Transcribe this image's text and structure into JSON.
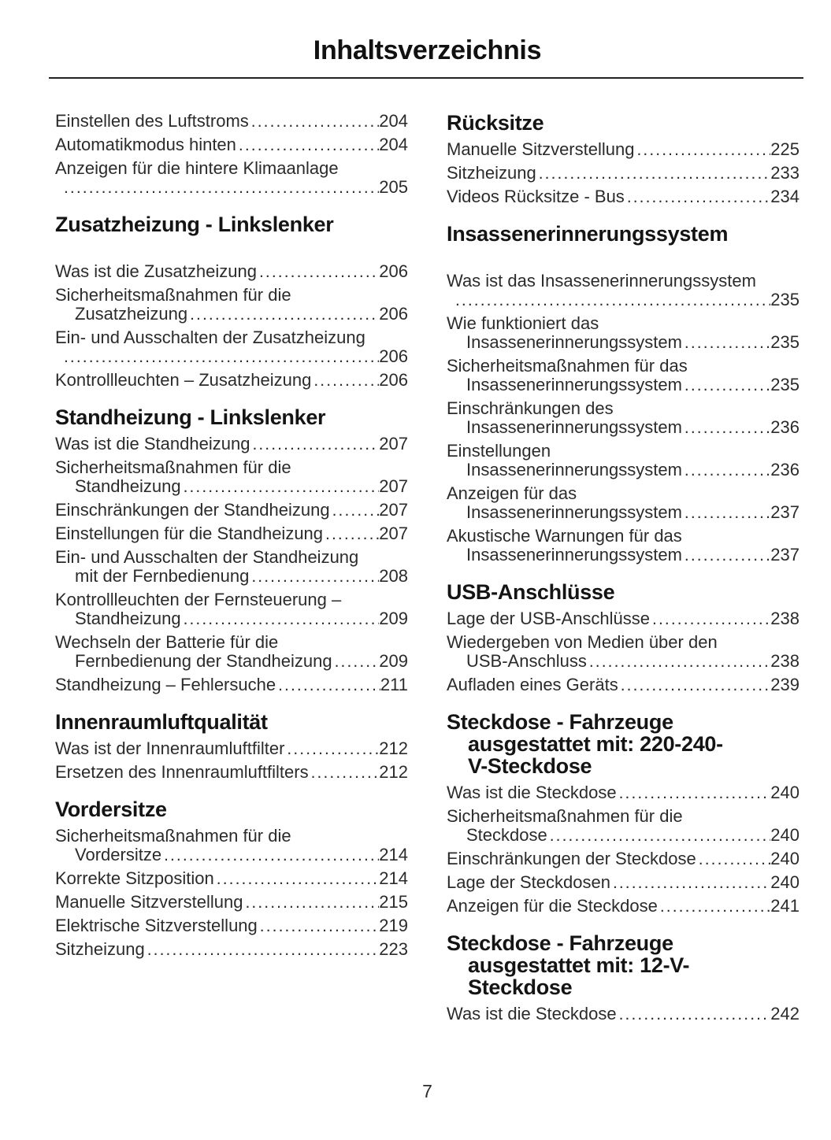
{
  "header": {
    "title": "Inhaltsverzeichnis"
  },
  "footer": {
    "page_number": "7"
  },
  "colors": {
    "background": "#ffffff",
    "text": "#2b2b2b",
    "heading": "#141414",
    "rule": "#222222"
  },
  "toc": {
    "left": [
      {
        "entries": [
          {
            "text": "Einstellen des Luftstroms",
            "page": "204"
          },
          {
            "text": "Automatikmodus hinten",
            "page": "204"
          },
          {
            "text": "Anzeigen für die hintere Klimaanlage",
            "cont": "",
            "page": "205"
          }
        ]
      },
      {
        "heading": [
          "Zusatzheizung - Linkslenker"
        ],
        "gap_after_heading": true,
        "entries": [
          {
            "text": "Was ist die Zusatzheizung",
            "page": "206"
          },
          {
            "text": "Sicherheitsmaßnahmen für die",
            "cont": "Zusatzheizung",
            "page": "206"
          },
          {
            "text": "Ein- und Ausschalten der Zusatzheizung",
            "cont": "",
            "page": "206"
          },
          {
            "text": "Kontrollleuchten – Zusatzheizung",
            "page": "206"
          }
        ]
      },
      {
        "heading": [
          "Standheizung - Linkslenker"
        ],
        "entries": [
          {
            "text": "Was ist die Standheizung",
            "page": "207"
          },
          {
            "text": "Sicherheitsmaßnahmen für die",
            "cont": "Standheizung",
            "page": "207"
          },
          {
            "text": "Einschränkungen der Standheizung",
            "page": "207"
          },
          {
            "text": "Einstellungen für die Standheizung",
            "page": "207"
          },
          {
            "text": "Ein- und Ausschalten der Standheizung",
            "cont": "mit der Fernbedienung",
            "page": "208"
          },
          {
            "text": "Kontrollleuchten der Fernsteuerung –",
            "cont": "Standheizung",
            "page": "209"
          },
          {
            "text": "Wechseln der Batterie für die",
            "cont": "Fernbedienung der Standheizung",
            "page": "209"
          },
          {
            "text": "Standheizung – Fehlersuche",
            "page": "211"
          }
        ]
      },
      {
        "heading": [
          "Innenraumluftqualität"
        ],
        "entries": [
          {
            "text": "Was ist der Innenraumluftfilter",
            "page": "212"
          },
          {
            "text": "Ersetzen des Innenraumluftfilters",
            "page": "212"
          }
        ]
      },
      {
        "heading": [
          "Vordersitze"
        ],
        "entries": [
          {
            "text": "Sicherheitsmaßnahmen für die",
            "cont": "Vordersitze",
            "page": "214"
          },
          {
            "text": "Korrekte Sitzposition",
            "page": "214"
          },
          {
            "text": "Manuelle Sitzverstellung",
            "page": "215"
          },
          {
            "text": "Elektrische Sitzverstellung",
            "page": "219"
          },
          {
            "text": "Sitzheizung",
            "page": "223"
          }
        ]
      }
    ],
    "right": [
      {
        "heading": [
          "Rücksitze"
        ],
        "entries": [
          {
            "text": "Manuelle Sitzverstellung",
            "page": "225"
          },
          {
            "text": "Sitzheizung",
            "page": "233"
          },
          {
            "text": "Videos Rücksitze - Bus",
            "page": "234"
          }
        ]
      },
      {
        "heading": [
          "Insassenerinnerungssystem"
        ],
        "gap_after_heading": true,
        "entries": [
          {
            "text": "Was ist das Insassenerinnerungssystem",
            "cont": "",
            "page": "235"
          },
          {
            "text": "Wie funktioniert das",
            "cont": "Insassenerinnerungssystem",
            "page": "235"
          },
          {
            "text": "Sicherheitsmaßnahmen für das",
            "cont": "Insassenerinnerungssystem",
            "page": "235"
          },
          {
            "text": "Einschränkungen des",
            "cont": "Insassenerinnerungssystem",
            "page": "236"
          },
          {
            "text": "Einstellungen",
            "cont": "Insassenerinnerungssystem",
            "page": "236"
          },
          {
            "text": "Anzeigen für das",
            "cont": "Insassenerinnerungssystem",
            "page": "237"
          },
          {
            "text": "Akustische Warnungen für das",
            "cont": "Insassenerinnerungssystem",
            "page": "237"
          }
        ]
      },
      {
        "heading": [
          "USB-Anschlüsse"
        ],
        "entries": [
          {
            "text": "Lage der USB-Anschlüsse",
            "page": "238"
          },
          {
            "text": "Wiedergeben von Medien über den",
            "cont": "USB-Anschluss",
            "page": "238"
          },
          {
            "text": "Aufladen eines Geräts",
            "page": "239"
          }
        ]
      },
      {
        "heading": [
          "Steckdose - Fahrzeuge",
          "ausgestattet mit: 220-240-",
          "V-Steckdose"
        ],
        "entries": [
          {
            "text": "Was ist die Steckdose",
            "page": "240"
          },
          {
            "text": "Sicherheitsmaßnahmen für die",
            "cont": "Steckdose",
            "page": "240"
          },
          {
            "text": "Einschränkungen der Steckdose",
            "page": "240"
          },
          {
            "text": "Lage der Steckdosen",
            "page": "240"
          },
          {
            "text": "Anzeigen für die Steckdose",
            "page": "241"
          }
        ]
      },
      {
        "heading": [
          "Steckdose - Fahrzeuge",
          "ausgestattet mit: 12-V-",
          "Steckdose"
        ],
        "entries": [
          {
            "text": "Was ist die Steckdose",
            "page": "242"
          }
        ]
      }
    ]
  }
}
